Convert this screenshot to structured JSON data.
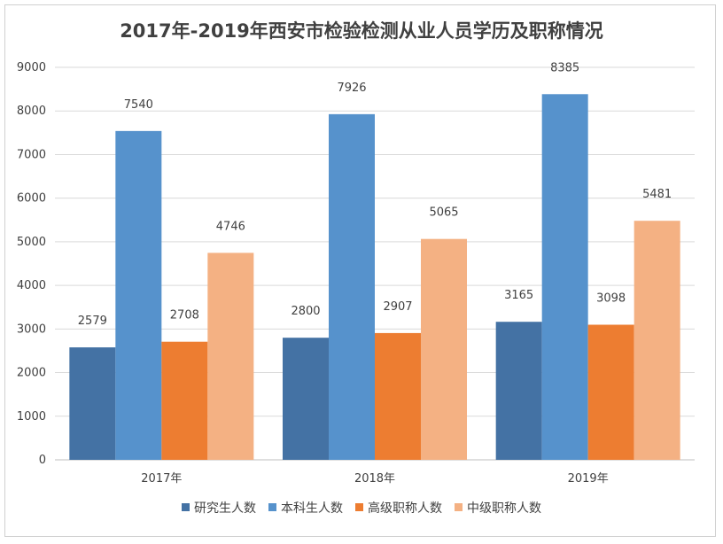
{
  "chart_data": {
    "type": "bar",
    "title": "2017年-2019年西安市检验检测从业人员学历及职称情况",
    "categories": [
      "2017年",
      "2018年",
      "2019年"
    ],
    "series": [
      {
        "name": "研究生人数",
        "values": [
          2579,
          2800,
          3165
        ],
        "color": "#4472a4"
      },
      {
        "name": "本科生人数",
        "values": [
          7540,
          7926,
          8385
        ],
        "color": "#5692cc"
      },
      {
        "name": "高级职称人数",
        "values": [
          2708,
          2907,
          3098
        ],
        "color": "#ed7d31"
      },
      {
        "name": "中级职称人数",
        "values": [
          4746,
          5065,
          5481
        ],
        "color": "#f4b183"
      }
    ],
    "ylim": [
      0,
      9000
    ],
    "yticks": [
      "0",
      "1000",
      "2000",
      "3000",
      "4000",
      "5000",
      "6000",
      "7000",
      "8000",
      "9000"
    ],
    "grid": true,
    "legend_position": "bottom",
    "xlabel": "",
    "ylabel": ""
  }
}
